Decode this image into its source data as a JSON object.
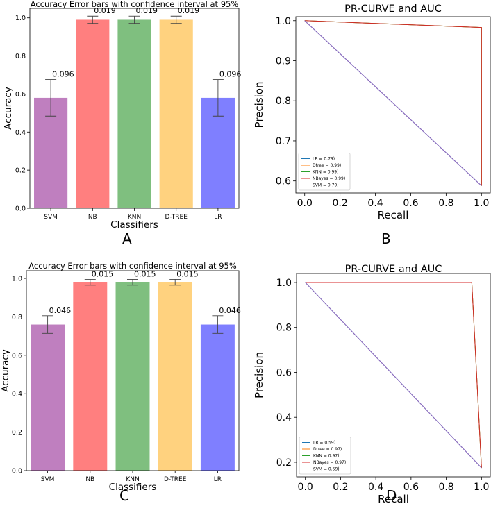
{
  "chart_data": [
    {
      "panel": "A",
      "type": "bar",
      "title": "Accuracy Error bars with confidence interval at 95%",
      "xlabel": "Classifiers",
      "ylabel": "Accuracy",
      "ylim": [
        0,
        1.05
      ],
      "yticks": [
        "0.0",
        "0.2",
        "0.4",
        "0.6",
        "0.8",
        "1.0"
      ],
      "categories": [
        "SVM",
        "NB",
        "KNN",
        "D-TREE",
        "LR"
      ],
      "values": [
        0.58,
        0.99,
        0.99,
        0.99,
        0.58
      ],
      "errors": [
        0.096,
        0.019,
        0.019,
        0.019,
        0.096
      ],
      "error_labels": [
        "0.096",
        "0.019",
        "0.019",
        "0.019",
        "0.096"
      ],
      "colors": [
        "#bf7fbf",
        "#ff7f7f",
        "#7fbf7f",
        "#ffd27f",
        "#7f7fff"
      ]
    },
    {
      "panel": "B",
      "type": "line",
      "title": "PR-CURVE and AUC",
      "xlabel": "Recall",
      "ylabel": "Precision",
      "xlim": [
        -0.05,
        1.05
      ],
      "ylim": [
        0.57,
        1.01
      ],
      "xticks": [
        "0.0",
        "0.2",
        "0.4",
        "0.6",
        "0.8",
        "1.0"
      ],
      "yticks": [
        "0.6",
        "0.7",
        "0.8",
        "0.9",
        "1.0"
      ],
      "legend_position": "lower-left",
      "series": [
        {
          "name": "LR = 0.79)",
          "color": "#1f77b4",
          "x": [
            0,
            1
          ],
          "y": [
            1.0,
            0.588
          ]
        },
        {
          "name": "Dtree = 0.99)",
          "color": "#ff7f0e",
          "x": [
            0,
            1,
            1
          ],
          "y": [
            1.0,
            0.983,
            0.588
          ]
        },
        {
          "name": "KNN = 0.99)",
          "color": "#2ca02c",
          "x": [
            0,
            1,
            1
          ],
          "y": [
            1.0,
            0.983,
            0.588
          ]
        },
        {
          "name": "NBayes = 0.99)",
          "color": "#d62728",
          "x": [
            0,
            1,
            1
          ],
          "y": [
            1.0,
            0.983,
            0.588
          ]
        },
        {
          "name": "SVM = 0.79)",
          "color": "#9467bd",
          "x": [
            0,
            1
          ],
          "y": [
            1.0,
            0.588
          ]
        }
      ]
    },
    {
      "panel": "C",
      "type": "bar",
      "title": "Accuracy Error bars with confidence interval at 95%",
      "xlabel": "Classifiers",
      "ylabel": "Accuracy",
      "ylim": [
        0,
        1.04
      ],
      "yticks": [
        "0.0",
        "0.2",
        "0.4",
        "0.6",
        "0.8",
        "1.0"
      ],
      "categories": [
        "SVM",
        "NB",
        "KNN",
        "D-TREE",
        "LR"
      ],
      "values": [
        0.76,
        0.98,
        0.98,
        0.98,
        0.76
      ],
      "errors": [
        0.046,
        0.015,
        0.015,
        0.015,
        0.046
      ],
      "error_labels": [
        "0.046",
        "0.015",
        "0.015",
        "0.015",
        "0.046"
      ],
      "colors": [
        "#bf7fbf",
        "#ff7f7f",
        "#7fbf7f",
        "#ffd27f",
        "#7f7fff"
      ]
    },
    {
      "panel": "D",
      "type": "line",
      "title": "PR-CURVE and AUC",
      "xlabel": "Recall",
      "ylabel": "Precision",
      "xlim": [
        -0.05,
        1.05
      ],
      "ylim": [
        0.135,
        1.04
      ],
      "xticks": [
        "0.0",
        "0.2",
        "0.4",
        "0.6",
        "0.8",
        "1.0"
      ],
      "yticks": [
        "0.2",
        "0.4",
        "0.6",
        "0.8",
        "1.0"
      ],
      "legend_position": "lower-left",
      "series": [
        {
          "name": "LR = 0.59)",
          "color": "#1f77b4",
          "x": [
            0,
            1
          ],
          "y": [
            1.0,
            0.175
          ]
        },
        {
          "name": "Dtree = 0.97)",
          "color": "#ff7f0e",
          "x": [
            0,
            0.945,
            1
          ],
          "y": [
            1.0,
            1.0,
            0.175
          ]
        },
        {
          "name": "KNN = 0.97)",
          "color": "#2ca02c",
          "x": [
            0,
            0.945,
            1
          ],
          "y": [
            1.0,
            1.0,
            0.175
          ]
        },
        {
          "name": "NBayes = 0.97)",
          "color": "#d62728",
          "x": [
            0,
            0.945,
            1
          ],
          "y": [
            1.0,
            1.0,
            0.175
          ]
        },
        {
          "name": "SVM = 0.59)",
          "color": "#9467bd",
          "x": [
            0,
            1
          ],
          "y": [
            1.0,
            0.175
          ]
        }
      ]
    }
  ],
  "panel_letters": [
    "A",
    "B",
    "C",
    "D"
  ]
}
